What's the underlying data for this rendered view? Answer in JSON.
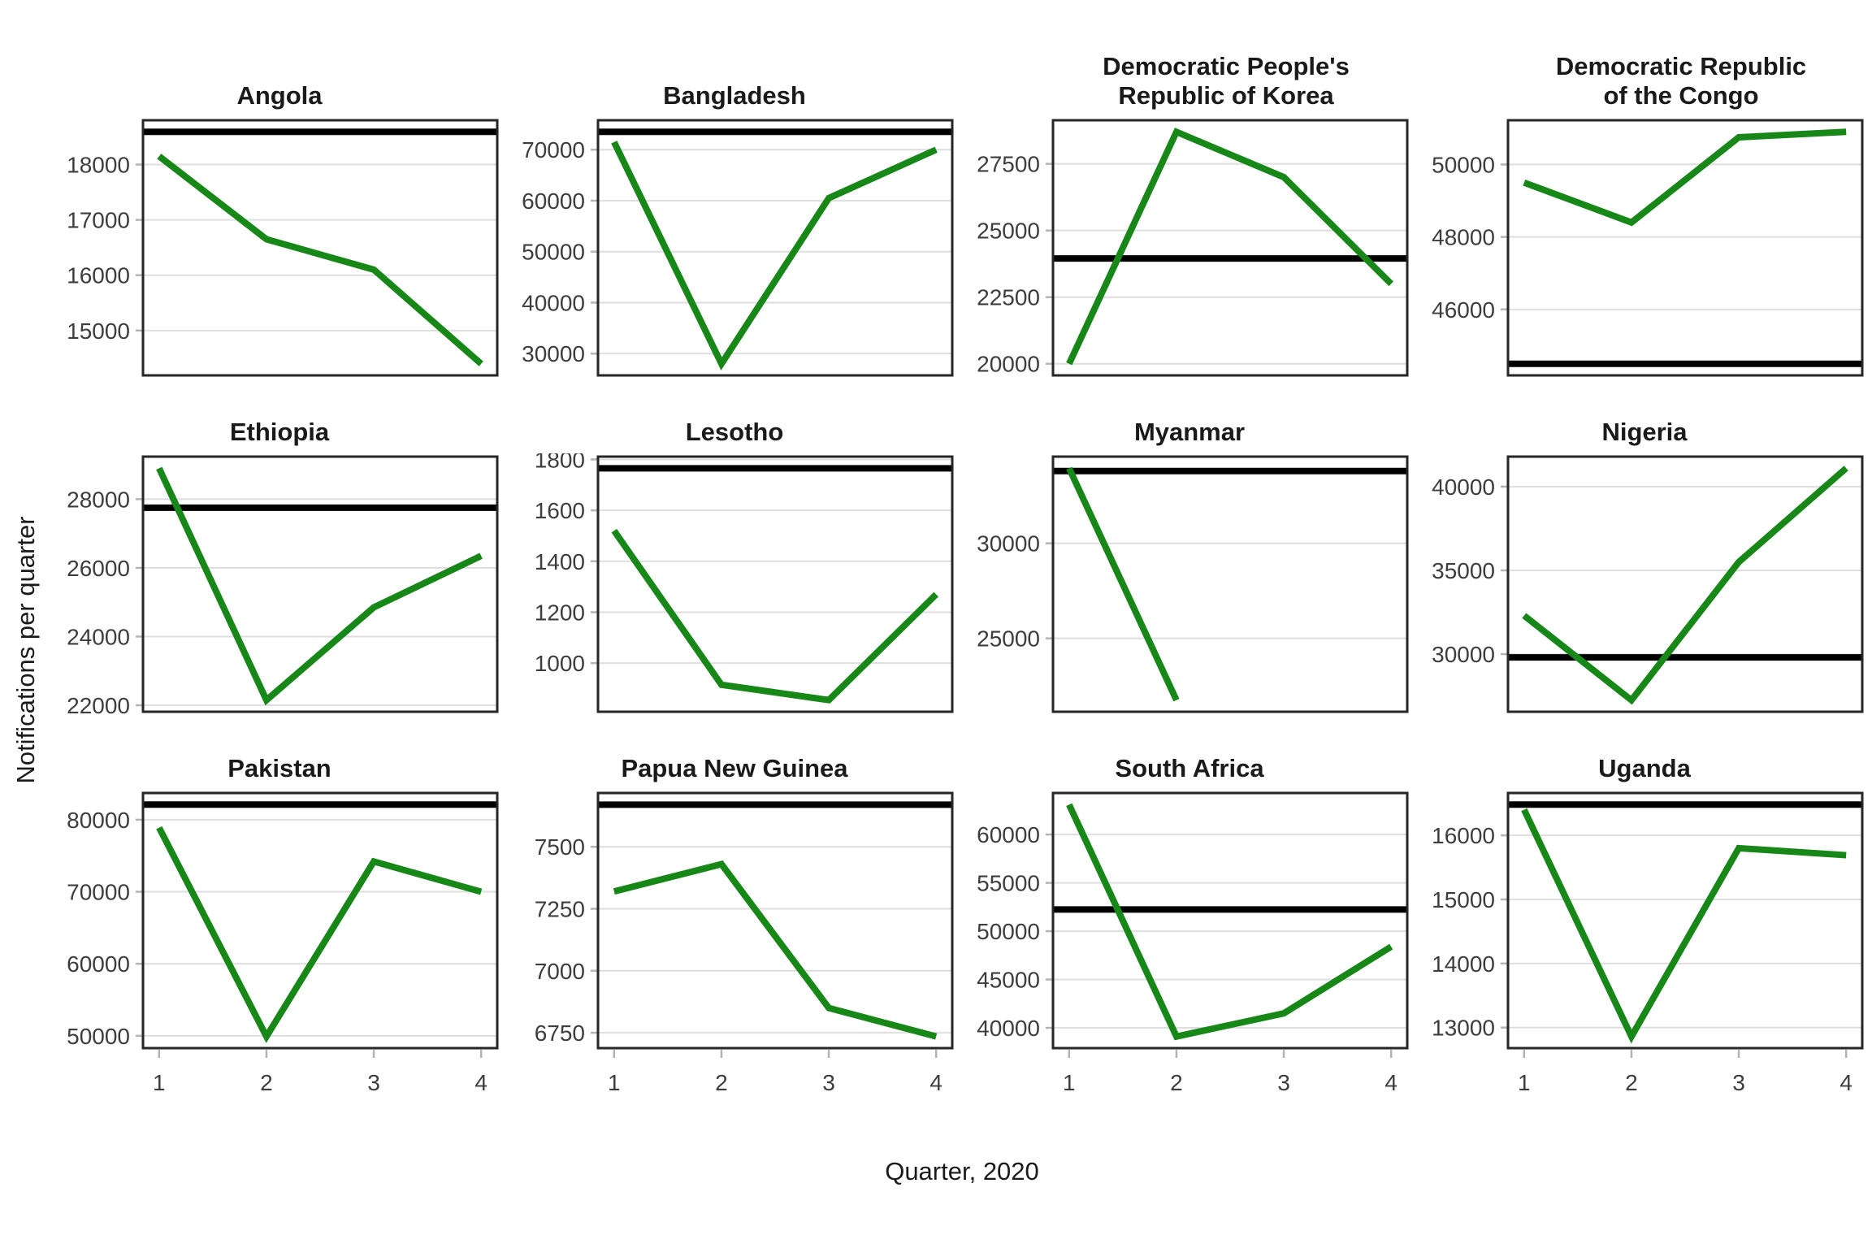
{
  "figure": {
    "xlabel": "Quarter, 2020",
    "ylabel": "Notifications per quarter"
  },
  "colors": {
    "line": "#178717",
    "reference": "#000000",
    "grid": "#dedede",
    "tick_mark": "#b3b3b3",
    "panel_border": "#262626",
    "panel_bg": "#ffffff"
  },
  "x_axis": {
    "min": 1,
    "max": 4,
    "min_expanded": 0.85,
    "max_expanded": 4.15,
    "ticks": [
      "1",
      "2",
      "3",
      "4"
    ]
  },
  "chart_data": [
    {
      "type": "line",
      "title": "Angola",
      "x": [
        1,
        2,
        3,
        4
      ],
      "values": [
        18150,
        16650,
        16100,
        14400
      ],
      "reference_line": 18590,
      "yticks": [
        15000,
        16000,
        17000,
        18000
      ],
      "ylim": [
        14190,
        18800
      ],
      "show_x_ticks": false
    },
    {
      "type": "line",
      "title": "Bangladesh",
      "x": [
        1,
        2,
        3,
        4
      ],
      "values": [
        71500,
        28000,
        60500,
        70000
      ],
      "reference_line": 73500,
      "yticks": [
        30000,
        40000,
        50000,
        60000,
        70000
      ],
      "ylim": [
        25725,
        75775
      ],
      "show_x_ticks": false
    },
    {
      "type": "line",
      "title": "Democratic People's\nRepublic of Korea",
      "x": [
        1,
        2,
        3,
        4
      ],
      "values": [
        20000,
        28700,
        27000,
        23000
      ],
      "reference_line": 23950,
      "yticks": [
        20000,
        22500,
        25000,
        27500
      ],
      "ylim": [
        19565,
        29135
      ],
      "show_x_ticks": false
    },
    {
      "type": "line",
      "title": "Democratic Republic\nof the Congo",
      "x": [
        1,
        2,
        3,
        4
      ],
      "values": [
        49500,
        48400,
        50750,
        50900
      ],
      "reference_line": 44500,
      "yticks": [
        46000,
        48000,
        50000
      ],
      "ylim": [
        44180,
        51220
      ],
      "show_x_ticks": false
    },
    {
      "type": "line",
      "title": "Ethiopia",
      "x": [
        1,
        2,
        3,
        4
      ],
      "values": [
        28900,
        22150,
        24850,
        26350
      ],
      "reference_line": 27750,
      "yticks": [
        22000,
        24000,
        26000,
        28000
      ],
      "ylim": [
        21812,
        29238
      ],
      "show_x_ticks": false
    },
    {
      "type": "line",
      "title": "Lesotho",
      "x": [
        1,
        2,
        3,
        4
      ],
      "values": [
        1520,
        915,
        855,
        1270
      ],
      "reference_line": 1765,
      "yticks": [
        1000,
        1200,
        1400,
        1600,
        1800
      ],
      "ylim": [
        809,
        1811
      ],
      "show_x_ticks": false
    },
    {
      "type": "line",
      "title": "Myanmar",
      "x": [
        1,
        2,
        3,
        4
      ],
      "values": [
        33950,
        21750,
        null,
        null
      ],
      "reference_line": 33800,
      "yticks": [
        25000,
        30000
      ],
      "ylim": [
        21140,
        34560
      ],
      "show_x_ticks": false
    },
    {
      "type": "line",
      "title": "Nigeria",
      "x": [
        1,
        2,
        3,
        4
      ],
      "values": [
        32300,
        27250,
        35500,
        41100
      ],
      "reference_line": 29800,
      "yticks": [
        30000,
        35000,
        40000
      ],
      "ylim": [
        26557,
        41793
      ],
      "show_x_ticks": false
    },
    {
      "type": "line",
      "title": "Pakistan",
      "x": [
        1,
        2,
        3,
        4
      ],
      "values": [
        78900,
        49900,
        74200,
        70000
      ],
      "reference_line": 82100,
      "yticks": [
        50000,
        60000,
        70000,
        80000
      ],
      "ylim": [
        48290,
        83710
      ],
      "show_x_ticks": true
    },
    {
      "type": "line",
      "title": "Papua New Guinea",
      "x": [
        1,
        2,
        3,
        4
      ],
      "values": [
        7320,
        7430,
        6850,
        6735
      ],
      "reference_line": 7670,
      "yticks": [
        6750,
        7000,
        7250,
        7500
      ],
      "ylim": [
        6688,
        7717
      ],
      "show_x_ticks": true
    },
    {
      "type": "line",
      "title": "South Africa",
      "x": [
        1,
        2,
        3,
        4
      ],
      "values": [
        63100,
        39100,
        41500,
        48400
      ],
      "reference_line": 52250,
      "yticks": [
        40000,
        45000,
        50000,
        55000,
        60000
      ],
      "ylim": [
        37900,
        64300
      ],
      "show_x_ticks": true
    },
    {
      "type": "line",
      "title": "Uganda",
      "x": [
        1,
        2,
        3,
        4
      ],
      "values": [
        16400,
        12860,
        15800,
        15690
      ],
      "reference_line": 16480,
      "yticks": [
        13000,
        14000,
        15000,
        16000
      ],
      "ylim": [
        12679,
        16661
      ],
      "show_x_ticks": true
    }
  ]
}
